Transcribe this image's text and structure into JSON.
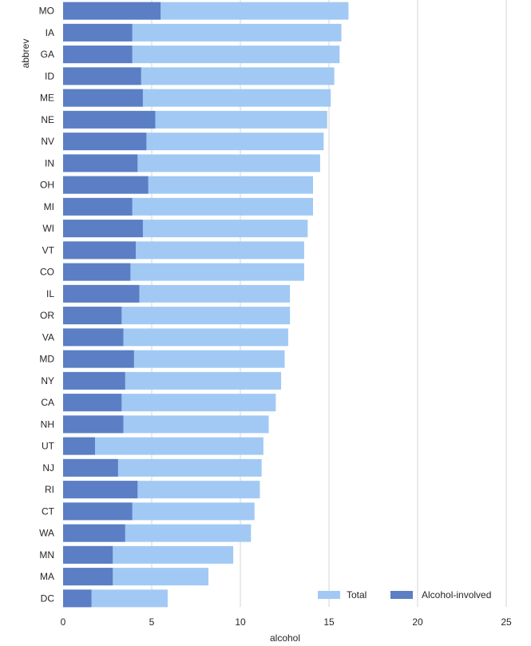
{
  "chart_data": {
    "type": "bar",
    "orientation": "horizontal",
    "xlabel": "alcohol",
    "ylabel": "abbrev",
    "xlim": [
      0,
      25
    ],
    "xticks": [
      0,
      5,
      10,
      15,
      20,
      25
    ],
    "grid": "vertical",
    "legend_position": "bottom-right",
    "categories": [
      "MO",
      "IA",
      "GA",
      "ID",
      "ME",
      "NE",
      "NV",
      "IN",
      "OH",
      "MI",
      "WI",
      "VT",
      "CO",
      "IL",
      "OR",
      "VA",
      "MD",
      "NY",
      "CA",
      "NH",
      "UT",
      "NJ",
      "RI",
      "CT",
      "WA",
      "MN",
      "MA",
      "DC"
    ],
    "series": [
      {
        "name": "Total",
        "color": "#a1c9f4",
        "values": [
          16.1,
          15.7,
          15.6,
          15.3,
          15.1,
          14.9,
          14.7,
          14.5,
          14.1,
          14.1,
          13.8,
          13.6,
          13.6,
          12.8,
          12.8,
          12.7,
          12.5,
          12.3,
          12.0,
          11.6,
          11.3,
          11.2,
          11.1,
          10.8,
          10.6,
          9.6,
          8.2,
          5.9
        ]
      },
      {
        "name": "Alcohol-involved",
        "color": "#5b7ec4",
        "values": [
          5.5,
          3.9,
          3.9,
          4.4,
          4.5,
          5.2,
          4.7,
          4.2,
          4.8,
          3.9,
          4.5,
          4.1,
          3.8,
          4.3,
          3.3,
          3.4,
          4.0,
          3.5,
          3.3,
          3.4,
          1.8,
          3.1,
          4.2,
          3.9,
          3.5,
          2.8,
          2.8,
          1.6
        ]
      }
    ]
  }
}
